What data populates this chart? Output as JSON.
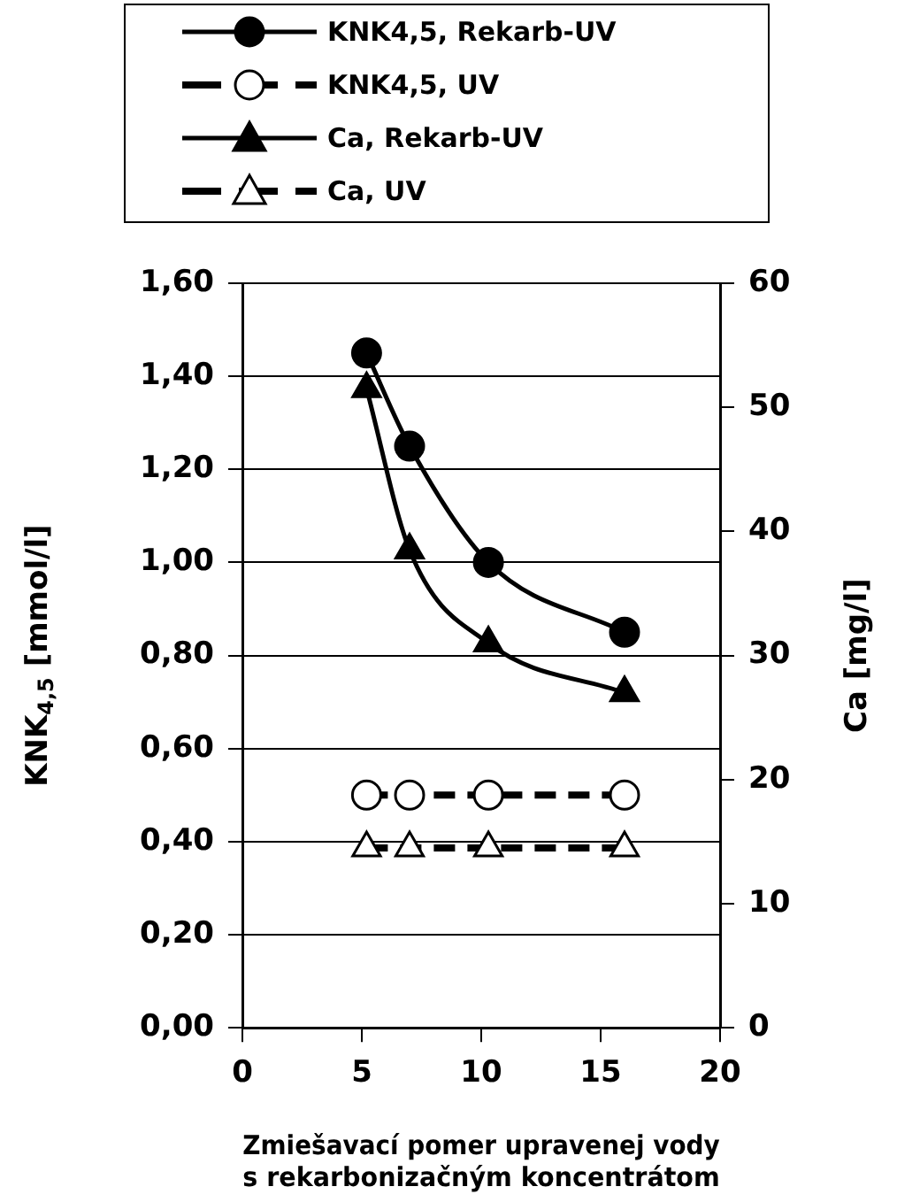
{
  "chart_data": {
    "type": "line",
    "xlabel": "Zmiešavací pomer upravenej vody\ns rekarbonizačným koncentrátom",
    "ylabel": "KNK$_{4,5}$ [mmol/l]",
    "y2label": "Ca [mg/l]",
    "xlim": [
      0,
      20
    ],
    "xticks": [
      0,
      5,
      10,
      15,
      20
    ],
    "ylim": [
      0,
      1.6
    ],
    "yticks": [
      {
        "value": 0,
        "label": "0,00"
      },
      {
        "value": 0.2,
        "label": "0,20"
      },
      {
        "value": 0.4,
        "label": "0,40"
      },
      {
        "value": 0.6,
        "label": "0,60"
      },
      {
        "value": 0.8,
        "label": "0,80"
      },
      {
        "value": 1.0,
        "label": "1,00"
      },
      {
        "value": 1.2,
        "label": "1,20"
      },
      {
        "value": 1.4,
        "label": "1,40"
      },
      {
        "value": 1.6,
        "label": "1,60"
      }
    ],
    "y2lim": [
      0,
      60
    ],
    "y2ticks": [
      0,
      10,
      20,
      30,
      40,
      50,
      60
    ],
    "grid": "y",
    "legend": "top",
    "x": [
      5.2,
      7.0,
      10.3,
      16.0
    ],
    "series": [
      {
        "name": "KNK4,5, Rekarb-UV",
        "color": "#000000",
        "values": [
          1.45,
          1.25,
          1.0,
          0.85
        ],
        "marker": "circle",
        "line_style": "solid"
      },
      {
        "name": "KNK4,5, UV",
        "color": "#000000",
        "values": [
          0.5,
          0.5,
          0.5,
          0.5
        ],
        "marker": "circle",
        "line_style": "dashed"
      },
      {
        "name": "Ca, Rekarb-UV",
        "color": "#000000",
        "values": [
          51.5,
          38.5,
          31,
          27
        ],
        "axis": "y2",
        "marker": "triangle",
        "line_style": "solid"
      },
      {
        "name": "Ca, UV",
        "color": "#000000",
        "values": [
          14.5,
          14.5,
          14.5,
          14.5
        ],
        "axis": "y2",
        "marker": "triangle",
        "line_style": "dashed"
      }
    ]
  }
}
